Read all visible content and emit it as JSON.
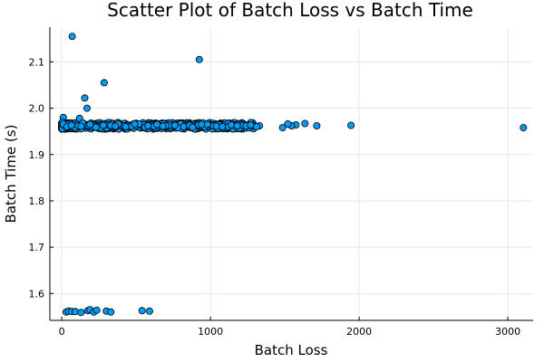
{
  "chart_data": {
    "type": "scatter",
    "title": "Scatter Plot of Batch Loss vs Batch Time",
    "xlabel": "Batch Loss",
    "ylabel": "Batch Time (s)",
    "xlim": [
      -80,
      3170
    ],
    "ylim": [
      1.542,
      2.175
    ],
    "xticks": [
      0,
      1000,
      2000,
      3000
    ],
    "xtick_labels": [
      "0",
      "1000",
      "2000",
      "3000"
    ],
    "yticks": [
      1.6,
      1.7,
      1.8,
      1.9,
      2.0,
      2.1
    ],
    "ytick_labels": [
      "1.6",
      "1.7",
      "1.8",
      "1.9",
      "2.0",
      "2.1"
    ],
    "grid": true,
    "legend": "none",
    "marker_color": "#009af9",
    "marker_edge_color": "#000000",
    "series": [
      {
        "x": [
          70,
          925,
          285,
          155,
          170,
          3105,
          1945,
          1715,
          1635,
          1575,
          1545,
          1520,
          1485,
          1330,
          1295,
          1265,
          1210,
          1155,
          1110,
          1060,
          1010,
          960,
          910,
          855,
          800,
          750,
          700,
          650,
          600,
          550,
          500,
          450,
          400,
          350,
          300,
          250,
          200,
          150,
          100,
          60,
          30,
          10,
          5,
          15,
          25,
          45,
          80,
          120,
          180,
          240,
          320,
          420,
          520,
          620,
          720,
          820,
          920,
          1020,
          1120,
          1220,
          5,
          20,
          40,
          90,
          140,
          110,
          200,
          260,
          330,
          380,
          470,
          560,
          640,
          700,
          780,
          860,
          940,
          1040,
          1140,
          1240,
          1310,
          10,
          35,
          65,
          130,
          190,
          230,
          280,
          360,
          430,
          490,
          580,
          680,
          760,
          880,
          980,
          1080,
          1180,
          1270,
          30,
          45,
          65,
          90,
          130,
          175,
          190,
          215,
          235,
          300,
          330,
          540,
          590
        ],
        "y": [
          2.155,
          2.105,
          2.055,
          2.022,
          2.0,
          1.958,
          1.963,
          1.962,
          1.967,
          1.964,
          1.962,
          1.966,
          1.958,
          1.962,
          1.961,
          1.963,
          1.965,
          1.963,
          1.958,
          1.964,
          1.962,
          1.96,
          1.963,
          1.961,
          1.966,
          1.962,
          1.96,
          1.963,
          1.961,
          1.964,
          1.962,
          1.96,
          1.963,
          1.961,
          1.965,
          1.962,
          1.96,
          1.964,
          1.962,
          1.96,
          1.963,
          1.98,
          1.97,
          1.958,
          1.966,
          1.961,
          1.964,
          1.978,
          1.962,
          1.96,
          1.964,
          1.962,
          1.966,
          1.961,
          1.963,
          1.96,
          1.964,
          1.962,
          1.96,
          1.963,
          1.956,
          1.962,
          1.965,
          1.958,
          1.968,
          1.962,
          1.965,
          1.958,
          1.963,
          1.966,
          1.961,
          1.959,
          1.965,
          1.962,
          1.958,
          1.963,
          1.965,
          1.961,
          1.964,
          1.962,
          1.96,
          1.966,
          1.96,
          1.963,
          1.961,
          1.965,
          1.959,
          1.963,
          1.961,
          1.96,
          1.966,
          1.962,
          1.961,
          1.963,
          1.959,
          1.965,
          1.96,
          1.962,
          1.964,
          1.56,
          1.562,
          1.561,
          1.561,
          1.559,
          1.563,
          1.565,
          1.56,
          1.564,
          1.562,
          1.56,
          1.563,
          1.562
        ]
      }
    ]
  }
}
